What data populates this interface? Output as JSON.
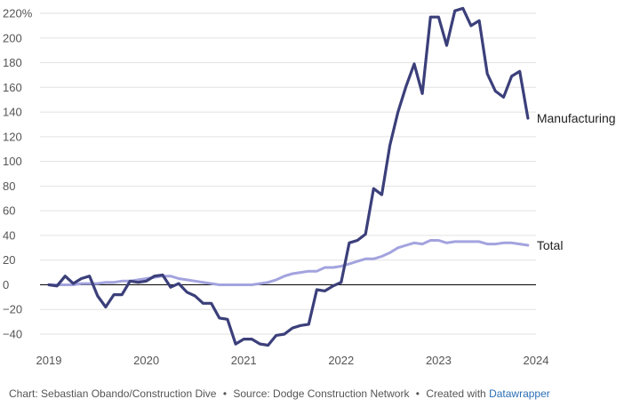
{
  "chart_data": {
    "type": "line",
    "title": "",
    "xlabel": "",
    "ylabel": "",
    "x_range": [
      2019.0,
      2024.0
    ],
    "ylim": [
      -50,
      220
    ],
    "y_ticks": [
      -40,
      -20,
      0,
      20,
      40,
      60,
      80,
      100,
      120,
      140,
      160,
      180,
      200,
      220
    ],
    "y_tick_labels": [
      "−40",
      "−20",
      "0",
      "20",
      "40",
      "60",
      "80",
      "100",
      "120",
      "140",
      "160",
      "180",
      "200",
      "220%"
    ],
    "x_ticks": [
      2019,
      2020,
      2021,
      2022,
      2023,
      2024
    ],
    "x_tick_labels": [
      "2019",
      "2020",
      "2021",
      "2022",
      "2023",
      "2024"
    ],
    "grid": true,
    "x_start": 2019.0,
    "x_step_months": 1,
    "series": [
      {
        "name": "Manufacturing",
        "label": "Manufacturing",
        "color": "#3b3f7a",
        "values": [
          0,
          -1,
          7,
          1,
          5,
          7,
          -9,
          -18,
          -8,
          -8,
          3,
          2,
          3,
          7,
          8,
          -2,
          1,
          -6,
          -9,
          -15,
          -15,
          -27,
          -28,
          -48,
          -44,
          -44,
          -48,
          -49,
          -41,
          -40,
          -35,
          -33,
          -32,
          -4,
          -5,
          -1,
          2,
          34,
          36,
          41,
          78,
          73,
          113,
          140,
          161,
          179,
          155,
          217,
          217,
          194,
          222,
          224,
          210,
          214,
          171,
          157,
          152,
          169,
          173,
          135
        ]
      },
      {
        "name": "Total",
        "label": "Total",
        "color": "#a3a3df",
        "values": [
          0,
          0,
          0,
          0,
          1,
          1,
          1,
          2,
          2,
          3,
          3,
          4,
          5,
          6,
          7,
          7,
          5,
          4,
          3,
          2,
          1,
          0,
          0,
          0,
          0,
          0,
          1,
          2,
          4,
          7,
          9,
          10,
          11,
          11,
          14,
          14,
          15,
          17,
          19,
          21,
          21,
          23,
          26,
          30,
          32,
          34,
          33,
          36,
          36,
          34,
          35,
          35,
          35,
          35,
          33,
          33,
          34,
          34,
          33,
          32
        ]
      }
    ]
  },
  "footer": {
    "chart_credit": "Chart: Sebastian Obando/Construction Dive",
    "source": "Source: Dodge Construction Network",
    "created_with_prefix": "Created with",
    "created_with_link": "Datawrapper",
    "separator": "•"
  }
}
